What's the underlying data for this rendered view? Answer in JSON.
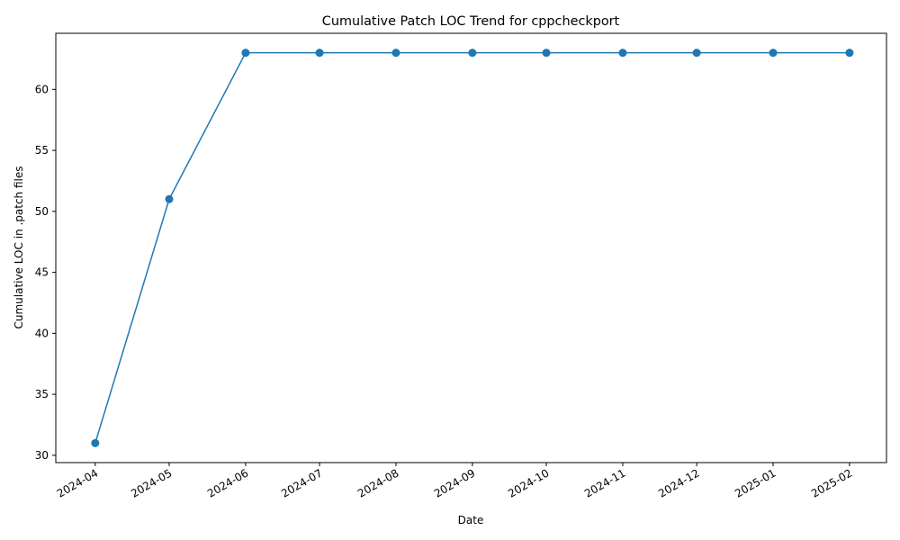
{
  "chart_data": {
    "type": "line",
    "title": "Cumulative Patch LOC Trend for cppcheckport",
    "xlabel": "Date",
    "ylabel": "Cumulative LOC in .patch files",
    "x_ticks": [
      "2024-04",
      "2024-05",
      "2024-06",
      "2024-07",
      "2024-08",
      "2024-09",
      "2024-10",
      "2024-11",
      "2024-12",
      "2025-01",
      "2025-02"
    ],
    "x": [
      "2024-04-01",
      "2024-05-01",
      "2024-06-01",
      "2024-07-01",
      "2024-08-01",
      "2024-09-01",
      "2024-10-01",
      "2024-11-01",
      "2024-12-01",
      "2025-01-01",
      "2025-02-01"
    ],
    "y": [
      31,
      51,
      63,
      63,
      63,
      63,
      63,
      63,
      63,
      63,
      63
    ],
    "y_ticks": [
      30,
      35,
      40,
      45,
      50,
      55,
      60
    ],
    "ylim": [
      29.4,
      64.6
    ],
    "xlim": [
      "2024-03-16",
      "2025-02-16"
    ],
    "grid": false,
    "line_color": "#1f77b4",
    "marker": "circle"
  }
}
